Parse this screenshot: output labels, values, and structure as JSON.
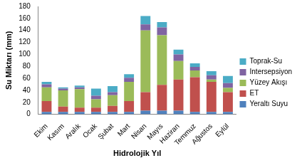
{
  "chart_data": {
    "type": "bar",
    "stacked": true,
    "x_label": "Hidrolojik Yıl",
    "y_label": "Su Miktarı (mm)",
    "categories": [
      "Ekim",
      "Kasım",
      "Aralık",
      "Ocak",
      "Şubat",
      "Mart",
      "Nisan",
      "Mayıs",
      "Haziran",
      "Temmuz",
      "Ağustos",
      "Eylül"
    ],
    "series": [
      {
        "name": "Yeraltı Suyu",
        "color": "#4f81bd",
        "values": [
          4,
          4,
          4,
          4,
          4,
          4,
          6,
          6,
          6,
          4,
          4,
          4
        ]
      },
      {
        "name": "ET",
        "color": "#c0504d",
        "values": [
          18,
          9,
          7,
          7,
          10,
          18,
          31,
          43,
          52,
          58,
          50,
          33
        ]
      },
      {
        "name": "Yüzey Akışı",
        "color": "#9bbb59",
        "values": [
          23,
          27,
          31,
          14,
          18,
          32,
          103,
          83,
          31,
          11,
          4,
          7
        ]
      },
      {
        "name": "Intersepsiyon",
        "color": "#8064a2",
        "values": [
          5,
          3,
          3,
          6,
          5,
          7,
          10,
          13,
          11,
          6,
          7,
          8
        ]
      },
      {
        "name": "Toprak-Su",
        "color": "#4bacc6",
        "values": [
          4,
          2,
          3,
          12,
          10,
          6,
          14,
          9,
          8,
          6,
          7,
          12
        ]
      }
    ],
    "ylim": [
      0,
      180
    ],
    "yticks": [
      0,
      20,
      40,
      60,
      80,
      100,
      120,
      140,
      160,
      180
    ],
    "grid": false,
    "legend": "right"
  }
}
